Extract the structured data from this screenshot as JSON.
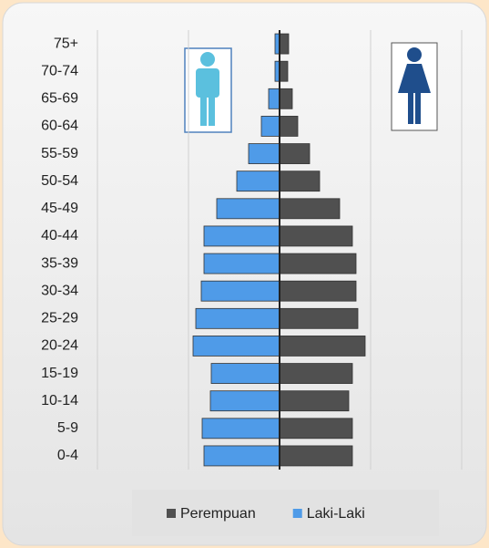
{
  "chart_data": {
    "type": "population-pyramid",
    "categories": [
      "0-4",
      "5-9",
      "10-14",
      "15-19",
      "20-24",
      "25-29",
      "30-34",
      "35-39",
      "40-44",
      "45-49",
      "50-54",
      "55-59",
      "60-64",
      "65-69",
      "70-74",
      "75+"
    ],
    "series": [
      {
        "name": "Perempuan",
        "color": "#505050",
        "side": "right",
        "values": [
          0.8,
          0.8,
          0.76,
          0.8,
          0.94,
          0.86,
          0.84,
          0.84,
          0.8,
          0.66,
          0.44,
          0.33,
          0.2,
          0.14,
          0.09,
          0.1
        ]
      },
      {
        "name": "Laki-Laki",
        "color": "#4f9be8",
        "side": "left",
        "values": [
          0.83,
          0.85,
          0.76,
          0.75,
          0.95,
          0.92,
          0.86,
          0.83,
          0.83,
          0.69,
          0.47,
          0.34,
          0.2,
          0.12,
          0.05,
          0.05
        ]
      }
    ],
    "xlim": [
      -2,
      2
    ],
    "xticks": [
      -2,
      -1,
      0,
      1,
      2
    ],
    "grid": true
  }
}
